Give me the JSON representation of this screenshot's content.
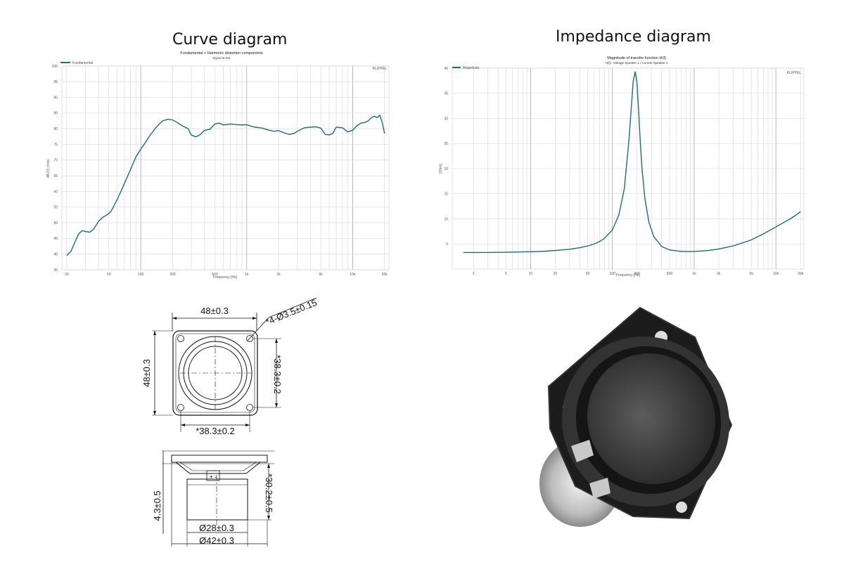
{
  "chart_data": [
    {
      "type": "line",
      "heading": "Curve diagram",
      "title": "Fundamental + Harmonic distortion components",
      "subtitle": "Signal at IN1",
      "xlabel": "Frequency [Hz]",
      "ylabel": "dB [V] (rms)",
      "watermark": "KLIPPEL",
      "xscale": "log",
      "xlim": [
        18,
        22000
      ],
      "ylim": [
        35,
        100
      ],
      "grid": true,
      "legend_position": "top-left",
      "xticks": [
        {
          "v": 20,
          "label": "20"
        },
        {
          "v": 50,
          "label": "50"
        },
        {
          "v": 100,
          "label": "100"
        },
        {
          "v": 200,
          "label": "200"
        },
        {
          "v": 500,
          "label": "500"
        },
        {
          "v": 1000,
          "label": "1k"
        },
        {
          "v": 2000,
          "label": "2k"
        },
        {
          "v": 5000,
          "label": "5k"
        },
        {
          "v": 10000,
          "label": "10k"
        },
        {
          "v": 20000,
          "label": "20k"
        }
      ],
      "yticks": [
        35,
        40,
        45,
        50,
        55,
        60,
        65,
        70,
        75,
        80,
        85,
        90,
        95,
        100
      ],
      "series": [
        {
          "name": "Fundamental",
          "color": "#1a6e78",
          "x": [
            20,
            22,
            24,
            26,
            28,
            30,
            33,
            36,
            40,
            44,
            48,
            52,
            56,
            60,
            65,
            70,
            80,
            90,
            100,
            110,
            120,
            140,
            160,
            180,
            200,
            220,
            250,
            280,
            300,
            330,
            360,
            400,
            450,
            500,
            550,
            600,
            700,
            800,
            900,
            1000,
            1100,
            1200,
            1400,
            1600,
            1800,
            2000,
            2200,
            2500,
            2800,
            3000,
            3500,
            4000,
            4500,
            5000,
            5500,
            6000,
            6500,
            7000,
            8000,
            9000,
            10000,
            11000,
            12000,
            13000,
            14000,
            15000,
            16000,
            17000,
            18000,
            19000,
            20000
          ],
          "values": [
            39.5,
            41,
            44,
            46.5,
            47.5,
            47.2,
            47,
            48,
            50.5,
            51.8,
            52.5,
            53.5,
            55.5,
            57.5,
            60,
            62.5,
            67,
            71,
            73.5,
            75.5,
            77.5,
            80.5,
            82.5,
            83,
            82.8,
            82,
            80.8,
            80,
            78,
            77.4,
            78,
            79.5,
            79.8,
            81.5,
            81.8,
            81.2,
            81.5,
            81.3,
            81.2,
            81.3,
            80.8,
            80.5,
            80.2,
            79.6,
            79.2,
            79.4,
            78.8,
            78.2,
            78.5,
            79.2,
            80.3,
            80.5,
            80.6,
            80.2,
            78.2,
            78,
            78.5,
            80.5,
            80.3,
            79,
            79.5,
            81,
            81.8,
            82,
            82.5,
            83.5,
            84,
            83.5,
            84.3,
            82,
            78.5
          ]
        }
      ]
    },
    {
      "type": "line",
      "heading": "Impedance diagram",
      "title": "Magnitude of transfer function H(f)",
      "subtitle": "H(f)= Voltage Speaker 1 / Current Speaker 1",
      "xlabel": "Frequency [Hz]",
      "ylabel": "[Ohm]",
      "watermark": "KLIPPEL",
      "xscale": "log",
      "xlim": [
        1.1,
        22000
      ],
      "ylim": [
        0,
        40
      ],
      "grid": true,
      "legend_position": "top-left",
      "xticks": [
        {
          "v": 2,
          "label": "2"
        },
        {
          "v": 5,
          "label": "5"
        },
        {
          "v": 10,
          "label": "10"
        },
        {
          "v": 20,
          "label": "20"
        },
        {
          "v": 50,
          "label": "50"
        },
        {
          "v": 100,
          "label": "100"
        },
        {
          "v": 200,
          "label": "200"
        },
        {
          "v": 500,
          "label": "500"
        },
        {
          "v": 1000,
          "label": "1k"
        },
        {
          "v": 2000,
          "label": "2k"
        },
        {
          "v": 5000,
          "label": "5k"
        },
        {
          "v": 10000,
          "label": "10k"
        },
        {
          "v": 20000,
          "label": "20k"
        }
      ],
      "yticks": [
        5,
        10,
        15,
        20,
        25,
        30,
        35,
        40
      ],
      "series": [
        {
          "name": "Magnitude",
          "color": "#1a6e78",
          "x": [
            1.5,
            2,
            3,
            5,
            7,
            10,
            15,
            20,
            30,
            40,
            50,
            60,
            70,
            80,
            100,
            120,
            140,
            160,
            170,
            180,
            190,
            200,
            210,
            220,
            230,
            250,
            280,
            320,
            400,
            500,
            700,
            1000,
            1500,
            2000,
            3000,
            5000,
            7000,
            10000,
            15000,
            20000
          ],
          "values": [
            3.3,
            3.3,
            3.3,
            3.35,
            3.4,
            3.45,
            3.55,
            3.7,
            3.95,
            4.25,
            4.6,
            5,
            5.5,
            6.1,
            7.8,
            10.8,
            16,
            26,
            32,
            37.5,
            39.3,
            37,
            31,
            25,
            20,
            14,
            9.3,
            6.5,
            4.5,
            3.8,
            3.5,
            3.5,
            3.7,
            4,
            4.6,
            5.8,
            7,
            8.4,
            10,
            11.4
          ]
        }
      ]
    }
  ],
  "drawing": {
    "flange_width": "48±0.3",
    "mounting_holes": "*4-Ø3.5±0.15",
    "outer_height": "48±0.3",
    "hole_spacing_vertical": "*38.3±0.2",
    "hole_spacing_horizontal": "*38.3±0.2",
    "flange_thickness": "4.3±0.5",
    "depth": "*30.2±0.5",
    "magnet_diameter": "Ø28±0.3",
    "body_diameter": "Ø42±0.3",
    "terminal_marks": "+ -"
  }
}
